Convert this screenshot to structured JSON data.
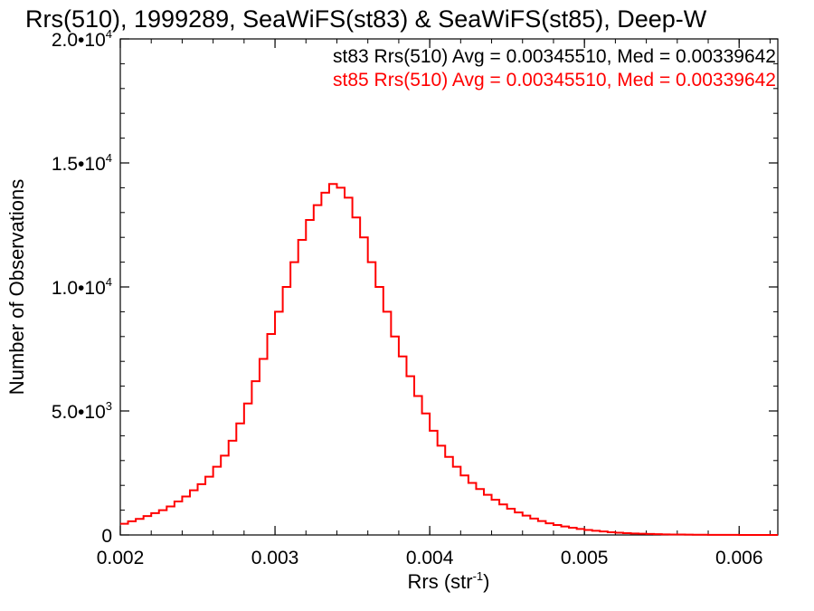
{
  "chart_data": {
    "type": "line",
    "title": "Rrs(510), 1999289, SeaWiFS(st83) & SeaWiFS(st85), Deep-W",
    "xlabel": "Rrs (str",
    "xlabel_sup": "-1",
    "xlabel_close": ")",
    "ylabel": "Number of Observations",
    "xlim": [
      0.002,
      0.00625
    ],
    "ylim": [
      0,
      20000
    ],
    "x_ticks": [
      {
        "value": 0.002,
        "label": "0.002"
      },
      {
        "value": 0.003,
        "label": "0.003"
      },
      {
        "value": 0.004,
        "label": "0.004"
      },
      {
        "value": 0.005,
        "label": "0.005"
      },
      {
        "value": 0.006,
        "label": "0.006"
      }
    ],
    "y_ticks": [
      {
        "value": 0,
        "mantissa": "0",
        "exp": ""
      },
      {
        "value": 5000,
        "mantissa": "5.0•10",
        "exp": "3"
      },
      {
        "value": 10000,
        "mantissa": "1.0•10",
        "exp": "4"
      },
      {
        "value": 15000,
        "mantissa": "1.5•10",
        "exp": "4"
      },
      {
        "value": 20000,
        "mantissa": "2.0•10",
        "exp": "4"
      }
    ],
    "annotations": [
      {
        "text": "st83 Rrs(510) Avg = 0.00345510, Med = 0.00339642",
        "color": "#000000"
      },
      {
        "text": "st85 Rrs(510) Avg = 0.00345510, Med = 0.00339642",
        "color": "#ff0000"
      }
    ],
    "series": [
      {
        "name": "st85",
        "color": "#ff0000",
        "render": "step",
        "points": [
          [
            0.002,
            450
          ],
          [
            0.00205,
            550
          ],
          [
            0.0021,
            650
          ],
          [
            0.00215,
            760
          ],
          [
            0.0022,
            880
          ],
          [
            0.00225,
            1000
          ],
          [
            0.0023,
            1150
          ],
          [
            0.00235,
            1350
          ],
          [
            0.0024,
            1550
          ],
          [
            0.00245,
            1800
          ],
          [
            0.0025,
            2050
          ],
          [
            0.00255,
            2350
          ],
          [
            0.0026,
            2750
          ],
          [
            0.00265,
            3200
          ],
          [
            0.0027,
            3800
          ],
          [
            0.00275,
            4500
          ],
          [
            0.0028,
            5300
          ],
          [
            0.00285,
            6200
          ],
          [
            0.0029,
            7100
          ],
          [
            0.00295,
            8100
          ],
          [
            0.003,
            9000
          ],
          [
            0.00305,
            10000
          ],
          [
            0.0031,
            11000
          ],
          [
            0.00315,
            11900
          ],
          [
            0.0032,
            12700
          ],
          [
            0.00325,
            13300
          ],
          [
            0.0033,
            13800
          ],
          [
            0.00335,
            14150
          ],
          [
            0.0034,
            14000
          ],
          [
            0.00345,
            13600
          ],
          [
            0.0035,
            12800
          ],
          [
            0.00355,
            12000
          ],
          [
            0.0036,
            11000
          ],
          [
            0.00365,
            10000
          ],
          [
            0.0037,
            9000
          ],
          [
            0.00375,
            8000
          ],
          [
            0.0038,
            7200
          ],
          [
            0.00385,
            6400
          ],
          [
            0.0039,
            5600
          ],
          [
            0.00395,
            4900
          ],
          [
            0.004,
            4200
          ],
          [
            0.00405,
            3600
          ],
          [
            0.0041,
            3150
          ],
          [
            0.00415,
            2750
          ],
          [
            0.0042,
            2400
          ],
          [
            0.00425,
            2100
          ],
          [
            0.0043,
            1850
          ],
          [
            0.00435,
            1620
          ],
          [
            0.0044,
            1420
          ],
          [
            0.00445,
            1230
          ],
          [
            0.0045,
            1060
          ],
          [
            0.00455,
            910
          ],
          [
            0.0046,
            780
          ],
          [
            0.00465,
            660
          ],
          [
            0.0047,
            560
          ],
          [
            0.00475,
            470
          ],
          [
            0.0048,
            400
          ],
          [
            0.00485,
            340
          ],
          [
            0.0049,
            290
          ],
          [
            0.00495,
            240
          ],
          [
            0.005,
            200
          ],
          [
            0.00505,
            170
          ],
          [
            0.0051,
            140
          ],
          [
            0.00515,
            110
          ],
          [
            0.0052,
            90
          ],
          [
            0.00525,
            75
          ],
          [
            0.0053,
            60
          ],
          [
            0.00535,
            50
          ],
          [
            0.0054,
            40
          ],
          [
            0.00545,
            32
          ],
          [
            0.0055,
            25
          ],
          [
            0.00555,
            20
          ],
          [
            0.0056,
            16
          ],
          [
            0.00565,
            13
          ],
          [
            0.0057,
            10
          ],
          [
            0.00575,
            8
          ],
          [
            0.0058,
            6
          ],
          [
            0.00585,
            5
          ],
          [
            0.0059,
            4
          ],
          [
            0.00595,
            3
          ],
          [
            0.006,
            2
          ],
          [
            0.00605,
            2
          ],
          [
            0.0061,
            1
          ],
          [
            0.00615,
            1
          ],
          [
            0.0062,
            1
          ]
        ]
      }
    ]
  }
}
